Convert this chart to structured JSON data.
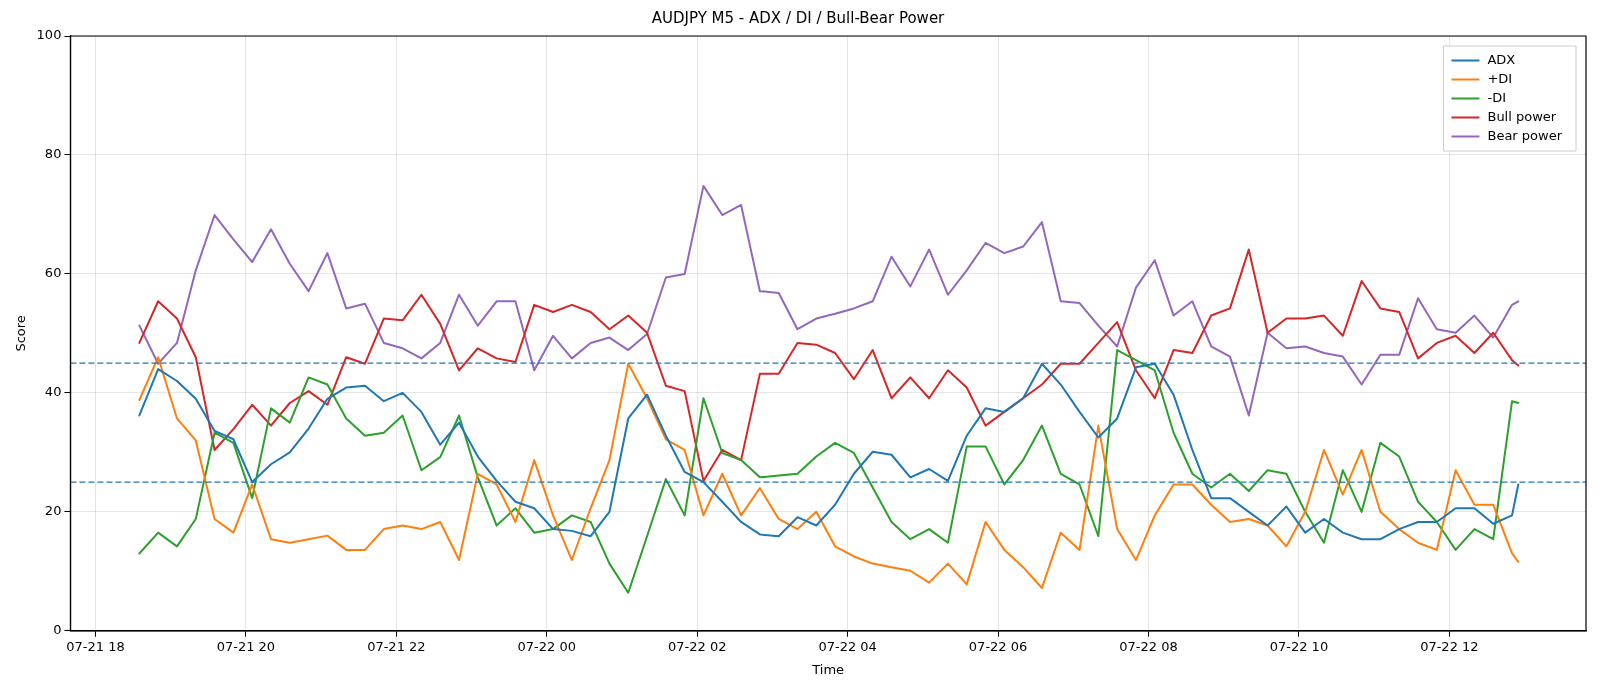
{
  "chart_data": {
    "type": "line",
    "title": "AUDJPY M5 - ADX / DI / Bull-Bear Power",
    "xlabel": "Time",
    "ylabel": "Score",
    "x": [
      "--07-21T18:35",
      "--07-21T18:50",
      "--07-21T19:05",
      "--07-21T19:20",
      "--07-21T19:35",
      "--07-21T19:50",
      "--07-21T20:05",
      "--07-21T20:20",
      "--07-21T20:35",
      "--07-21T20:50",
      "--07-21T21:05",
      "--07-21T21:20",
      "--07-21T21:35",
      "--07-21T21:50",
      "--07-21T22:05",
      "--07-21T22:20",
      "--07-21T22:35",
      "--07-21T22:50",
      "--07-21T23:05",
      "--07-21T23:20",
      "--07-21T23:35",
      "--07-21T23:50",
      "--07-22T00:05",
      "--07-22T00:20",
      "--07-22T00:35",
      "--07-22T00:50",
      "--07-22T01:05",
      "--07-22T01:20",
      "--07-22T01:35",
      "--07-22T01:50",
      "--07-22T02:05",
      "--07-22T02:20",
      "--07-22T02:35",
      "--07-22T02:50",
      "--07-22T03:05",
      "--07-22T03:20",
      "--07-22T03:35",
      "--07-22T03:50",
      "--07-22T04:05",
      "--07-22T04:20",
      "--07-22T04:35",
      "--07-22T04:50",
      "--07-22T05:05",
      "--07-22T05:20",
      "--07-22T05:35",
      "--07-22T05:50",
      "--07-22T06:05",
      "--07-22T06:20",
      "--07-22T06:35",
      "--07-22T06:50",
      "--07-22T07:05",
      "--07-22T07:20",
      "--07-22T07:35",
      "--07-22T07:50",
      "--07-22T08:05",
      "--07-22T08:20",
      "--07-22T08:35",
      "--07-22T08:50",
      "--07-22T09:05",
      "--07-22T09:20",
      "--07-22T09:35",
      "--07-22T09:50",
      "--07-22T10:05",
      "--07-22T10:20",
      "--07-22T10:35",
      "--07-22T10:50",
      "--07-22T11:05",
      "--07-22T11:20",
      "--07-22T11:35",
      "--07-22T11:50",
      "--07-22T12:05",
      "--07-22T12:20",
      "--07-22T12:35",
      "--07-22T12:50",
      "--07-22T12:55"
    ],
    "series": [
      {
        "name": "ADX",
        "color": "#1f77b4",
        "values": [
          36.2,
          44,
          42,
          39,
          33.6,
          32.2,
          25,
          28,
          30,
          34,
          39,
          40.9,
          41.2,
          38.6,
          40,
          36.8,
          31.3,
          35,
          29.3,
          25.2,
          21.7,
          20.6,
          17.1,
          16.8,
          15.9,
          20,
          35.7,
          39.7,
          32.8,
          26.7,
          25,
          21.7,
          18.3,
          16.2,
          15.9,
          19.1,
          17.7,
          21.2,
          26.4,
          30.1,
          29.6,
          25.8,
          27.2,
          25.2,
          32.8,
          37.4,
          36.8,
          39.1,
          44.9,
          41.4,
          36.8,
          32.5,
          35.7,
          44.3,
          44.9,
          39.7,
          30.4,
          22.3,
          22.3,
          20,
          17.7,
          20.9,
          16.5,
          18.8,
          16.5,
          15.4,
          15.4,
          17.1,
          18.3,
          18.3,
          20.6,
          20.6,
          18,
          19.4,
          24.6
        ]
      },
      {
        "name": "+DI",
        "color": "#ff7f0e",
        "values": [
          38.8,
          46,
          35.7,
          32,
          18.8,
          16.5,
          24.6,
          15.4,
          14.8,
          15.4,
          16,
          13.6,
          13.6,
          17.1,
          17.7,
          17.1,
          18.3,
          11.9,
          26.4,
          24.6,
          18.3,
          28.7,
          19.4,
          11.9,
          20.6,
          28.7,
          44.9,
          39.1,
          32.2,
          30.4,
          19.4,
          26.4,
          19.4,
          24,
          18.8,
          17.1,
          20,
          14.2,
          12.5,
          11.3,
          10.7,
          10.1,
          8.1,
          11.3,
          7.8,
          18.3,
          13.6,
          10.7,
          7.2,
          16.5,
          13.6,
          34.5,
          17.1,
          11.9,
          19.4,
          24.6,
          24.6,
          21.2,
          18.3,
          18.8,
          17.7,
          14.2,
          20,
          30.4,
          22.9,
          30.4,
          20,
          17.1,
          14.8,
          13.6,
          27,
          21.2,
          21.2,
          13,
          11.6
        ]
      },
      {
        "name": "-DI",
        "color": "#2ca02c",
        "values": [
          13,
          16.5,
          14.2,
          18.8,
          33.3,
          31.6,
          22.3,
          37.4,
          35,
          42.6,
          41.4,
          35.7,
          32.8,
          33.3,
          36.2,
          27,
          29.2,
          36.2,
          25.8,
          17.7,
          20.6,
          16.5,
          17.1,
          19.4,
          18.3,
          11.3,
          6.4,
          15.9,
          25.5,
          19.4,
          39.1,
          29.9,
          28.7,
          25.8,
          26.1,
          26.4,
          29.3,
          31.6,
          29.9,
          24.1,
          18.3,
          15.4,
          17.1,
          14.8,
          31,
          31,
          24.6,
          28.7,
          34.5,
          26.4,
          24.6,
          15.9,
          47.2,
          45.5,
          43.8,
          33.3,
          26.4,
          24.1,
          26.4,
          23.5,
          27,
          26.4,
          20,
          14.8,
          27,
          20,
          31.6,
          29.3,
          21.7,
          18.3,
          13.6,
          17.1,
          15.4,
          38.6,
          38.3
        ]
      },
      {
        "name": "Bull power",
        "color": "#d62728",
        "values": [
          48.4,
          55.4,
          52.5,
          46,
          30.4,
          33.9,
          38,
          34.5,
          38.3,
          40.3,
          38,
          46,
          44.9,
          52.5,
          52.2,
          56.5,
          51.6,
          43.8,
          47.5,
          45.8,
          45.2,
          54.8,
          53.6,
          54.8,
          53.6,
          50.7,
          53,
          50.1,
          41.2,
          40.3,
          25.2,
          30.4,
          28.7,
          43.2,
          43.2,
          48.4,
          48.1,
          46.7,
          42.3,
          47.2,
          39.1,
          42.6,
          39.1,
          43.8,
          40.9,
          34.5,
          36.8,
          39.1,
          41.4,
          44.9,
          44.9,
          48.4,
          51.9,
          43.8,
          39.1,
          47.2,
          46.7,
          53,
          54.2,
          64.1,
          50.1,
          52.5,
          52.5,
          53,
          49.6,
          58.8,
          54.2,
          53.6,
          45.8,
          48.4,
          49.6,
          46.7,
          50.1,
          45.5,
          44.6
        ]
      },
      {
        "name": "Bear power",
        "color": "#9467bd",
        "values": [
          51.3,
          44.9,
          48.4,
          60.6,
          69.9,
          65.8,
          62,
          67.5,
          61.7,
          57.1,
          63.5,
          54.2,
          55,
          48.4,
          47.5,
          45.8,
          48.4,
          56.5,
          51.3,
          55.4,
          55.4,
          43.8,
          49.6,
          45.8,
          48.4,
          49.3,
          47.2,
          49.9,
          59.4,
          60,
          74.8,
          69.9,
          71.6,
          57.1,
          56.8,
          50.7,
          52.5,
          53.3,
          54.2,
          55.4,
          62.9,
          57.9,
          64.1,
          56.5,
          60.6,
          65.2,
          63.5,
          64.6,
          68.7,
          55.4,
          55.1,
          51.3,
          47.8,
          57.7,
          62.3,
          53,
          55.4,
          47.8,
          46.1,
          36.2,
          50.1,
          47.5,
          47.8,
          46.7,
          46.1,
          41.4,
          46.4,
          46.4,
          55.9,
          50.7,
          50.1,
          53,
          49.3,
          54.8,
          55.4
        ]
      }
    ],
    "xlim": [
      "--07-21T17:40",
      "--07-22T13:49"
    ],
    "xticks": [
      {
        "value": "--07-21T18:00",
        "label": "07-21 18"
      },
      {
        "value": "--07-21T20:00",
        "label": "07-21 20"
      },
      {
        "value": "--07-21T22:00",
        "label": "07-21 22"
      },
      {
        "value": "--07-22T00:00",
        "label": "07-22 00"
      },
      {
        "value": "--07-22T02:00",
        "label": "07-22 02"
      },
      {
        "value": "--07-22T04:00",
        "label": "07-22 04"
      },
      {
        "value": "--07-22T06:00",
        "label": "07-22 06"
      },
      {
        "value": "--07-22T08:00",
        "label": "07-22 08"
      },
      {
        "value": "--07-22T10:00",
        "label": "07-22 10"
      },
      {
        "value": "--07-22T12:00",
        "label": "07-22 12"
      }
    ],
    "ylim": [
      0,
      100
    ],
    "yticks": [
      0,
      20,
      40,
      60,
      80,
      100
    ],
    "ref_lines": [
      {
        "axis": "y",
        "value": 45,
        "color": "#1f77b4",
        "line_style": "dashed"
      },
      {
        "axis": "y",
        "value": 25,
        "color": "#1f77b4",
        "line_style": "dashed"
      }
    ],
    "grid": true,
    "legend": "top right",
    "line_style": "solid",
    "marker": "none"
  }
}
